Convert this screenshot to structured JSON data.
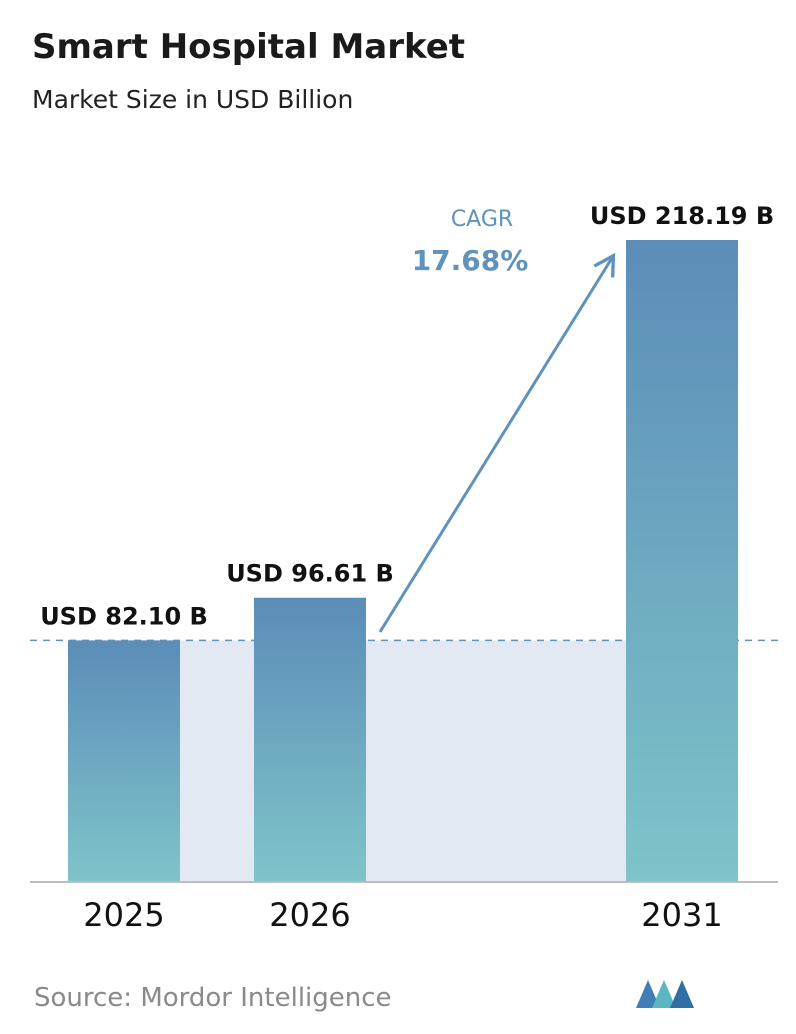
{
  "chart_data": {
    "type": "bar",
    "title": "Smart Hospital Market",
    "subtitle": "Market Size in USD Billion",
    "categories": [
      "2025",
      "2026",
      "2031"
    ],
    "values": [
      82.1,
      96.61,
      218.19
    ],
    "value_labels": [
      "USD 82.10 B",
      "USD 96.61 B",
      "USD 218.19 B"
    ],
    "annotation": {
      "label": "CAGR",
      "value": "17.68%"
    },
    "source": "Source:  Mordor Intelligence"
  }
}
